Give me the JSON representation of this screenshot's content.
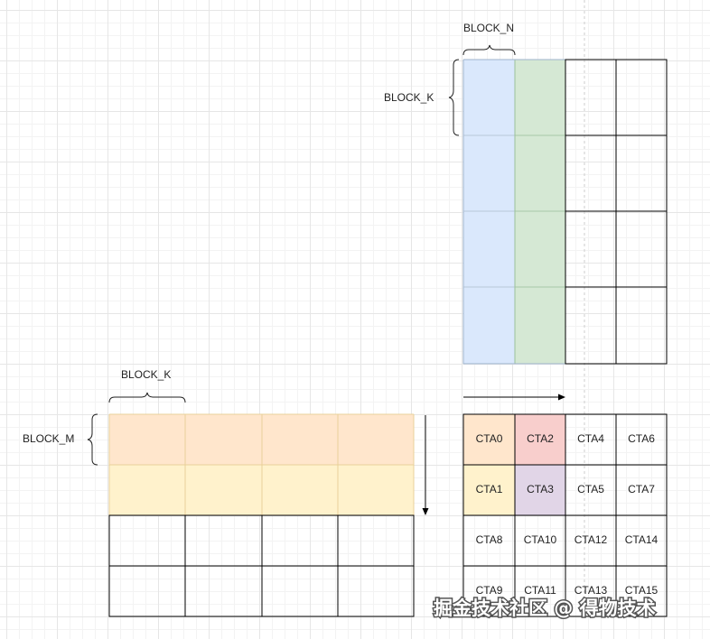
{
  "labels": {
    "block_n": "BLOCK_N",
    "block_k_top": "BLOCK_K",
    "block_k_left": "BLOCK_K",
    "block_m": "BLOCK_M"
  },
  "colors": {
    "blue": "#dae8fc",
    "green": "#d5e8d4",
    "orange": "#ffe6cc",
    "yellow": "#fff2cc",
    "red": "#f8cecc",
    "purple": "#e1d5e7",
    "grid": "#000000"
  },
  "cta_grid": [
    [
      "CTA0",
      "CTA2",
      "CTA4",
      "CTA6"
    ],
    [
      "CTA1",
      "CTA3",
      "CTA5",
      "CTA7"
    ],
    [
      "CTA8",
      "CTA10",
      "CTA12",
      "CTA14"
    ],
    [
      "CTA9",
      "CTA11",
      "CTA13",
      "CTA15"
    ]
  ],
  "watermark": "掘金技术社区 @ 得物技术"
}
